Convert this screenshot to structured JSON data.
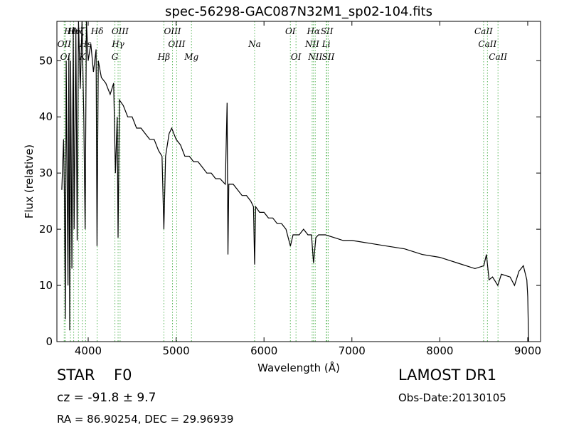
{
  "chart_data": {
    "type": "line",
    "title": "spec-56298-GAC087N32M1_sp02-104.fits",
    "x_label": "Wavelength (Å)",
    "y_label": "Flux (relative)",
    "xlim": [
      3644,
      9146
    ],
    "ylim": [
      0,
      57
    ],
    "xticks": [
      4000,
      5000,
      6000,
      7000,
      8000,
      9000
    ],
    "yticks": [
      0,
      10,
      20,
      30,
      40,
      50
    ],
    "color": "#000000",
    "x": [
      3700,
      3720,
      3730,
      3740,
      3750,
      3770,
      3780,
      3790,
      3800,
      3815,
      3830,
      3840,
      3860,
      3875,
      3890,
      3910,
      3930,
      3950,
      3965,
      3980,
      4000,
      4030,
      4060,
      4090,
      4100,
      4115,
      4150,
      4200,
      4250,
      4290,
      4310,
      4330,
      4340,
      4355,
      4400,
      4450,
      4500,
      4550,
      4600,
      4650,
      4700,
      4750,
      4800,
      4840,
      4861,
      4880,
      4920,
      4950,
      5000,
      5050,
      5100,
      5150,
      5200,
      5250,
      5300,
      5350,
      5400,
      5450,
      5500,
      5560,
      5580,
      5590,
      5600,
      5650,
      5700,
      5750,
      5800,
      5850,
      5880,
      5893,
      5905,
      5950,
      6000,
      6050,
      6100,
      6150,
      6200,
      6250,
      6300,
      6330,
      6400,
      6450,
      6500,
      6540,
      6563,
      6590,
      6620,
      6700,
      6800,
      6900,
      7000,
      7200,
      7400,
      7600,
      7800,
      8000,
      8200,
      8400,
      8500,
      8530,
      8560,
      8600,
      8660,
      8700,
      8800,
      8850,
      8900,
      8950,
      8990,
      9000,
      9010
    ],
    "values": [
      27,
      36,
      26,
      4,
      50,
      10,
      51,
      2,
      50,
      13,
      56,
      20,
      55,
      18,
      57,
      45,
      57,
      40,
      20,
      57,
      50,
      53,
      48,
      52,
      17,
      50,
      47,
      46,
      44,
      46,
      30,
      40,
      18.5,
      43,
      42,
      40,
      40,
      38,
      38,
      37,
      36,
      36,
      34,
      33,
      20,
      33,
      37,
      38,
      36,
      35,
      33,
      33,
      32,
      32,
      31,
      30,
      30,
      29,
      29,
      28,
      42.5,
      15.5,
      28,
      28,
      27,
      26,
      26,
      25,
      24,
      13.7,
      24,
      23,
      23,
      22,
      22,
      21,
      21,
      20,
      17,
      19,
      19,
      20,
      19,
      19,
      14,
      18.5,
      19,
      19,
      18.5,
      18,
      18,
      17.5,
      17,
      16.5,
      15.5,
      15,
      14,
      13,
      13.5,
      15.5,
      11,
      11.5,
      10,
      12,
      11.5,
      10,
      12.5,
      13.5,
      11,
      8,
      0
    ],
    "spectral_lines": [
      [
        {
          "label": "Hθ",
          "x": 3798
        },
        {
          "label": "Hη",
          "x": 3835
        },
        {
          "label": "Hζ",
          "x": 3889
        },
        {
          "label": "Hδ",
          "x": 4102
        },
        {
          "label": "OIII",
          "x": 4363
        },
        {
          "label": "OIII",
          "x": 4959
        },
        {
          "label": "OI",
          "x": 6300
        },
        {
          "label": "Hα",
          "x": 6563
        },
        {
          "label": "SII",
          "x": 6716
        },
        {
          "label": "CaII",
          "x": 8498
        }
      ],
      [
        {
          "label": "OII",
          "x": 3727
        },
        {
          "label": "Hε",
          "x": 3970
        },
        {
          "label": "Hγ",
          "x": 4340
        },
        {
          "label": "OIII",
          "x": 5007
        },
        {
          "label": "Na",
          "x": 5893
        },
        {
          "label": "NII",
          "x": 6548
        },
        {
          "label": "Li",
          "x": 6708
        },
        {
          "label": "CaII",
          "x": 8542
        }
      ],
      [
        {
          "label": "OI",
          "x": 3740
        },
        {
          "label": "K",
          "x": 3934
        },
        {
          "label": "G",
          "x": 4304
        },
        {
          "label": "Hβ",
          "x": 4861
        },
        {
          "label": "Mg",
          "x": 5175
        },
        {
          "label": "OI",
          "x": 6364
        },
        {
          "label": "NII",
          "x": 6583
        },
        {
          "label": "SII",
          "x": 6731
        },
        {
          "label": "CaII",
          "x": 8662
        }
      ]
    ],
    "object_class": "STAR",
    "subclass": "F0",
    "velocity": "cz = -91.8 ± 9.7",
    "coordinates": "RA = 86.90254, DEC = 29.96939",
    "survey": "LAMOST DR1",
    "obs_date": "Obs-Date:20130105"
  }
}
